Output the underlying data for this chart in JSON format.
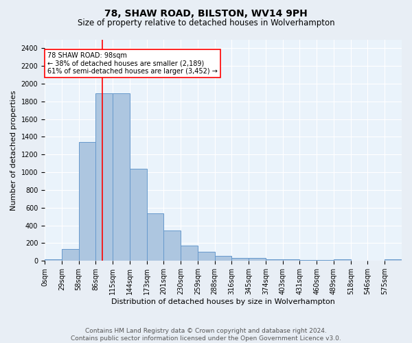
{
  "title1": "78, SHAW ROAD, BILSTON, WV14 9PH",
  "title2": "Size of property relative to detached houses in Wolverhampton",
  "xlabel": "Distribution of detached houses by size in Wolverhampton",
  "ylabel": "Number of detached properties",
  "footer": "Contains HM Land Registry data © Crown copyright and database right 2024.\nContains public sector information licensed under the Open Government Licence v3.0.",
  "bar_labels": [
    "0sqm",
    "29sqm",
    "58sqm",
    "86sqm",
    "115sqm",
    "144sqm",
    "173sqm",
    "201sqm",
    "230sqm",
    "259sqm",
    "288sqm",
    "316sqm",
    "345sqm",
    "374sqm",
    "403sqm",
    "431sqm",
    "460sqm",
    "489sqm",
    "518sqm",
    "546sqm",
    "575sqm"
  ],
  "bar_values": [
    15,
    130,
    1340,
    1890,
    1890,
    1040,
    540,
    340,
    170,
    105,
    55,
    35,
    30,
    20,
    15,
    10,
    8,
    15,
    5,
    5,
    15
  ],
  "bar_color": "#adc6e0",
  "bar_edge_color": "#6699cc",
  "property_line_x": 98,
  "property_line_color": "red",
  "annotation_text": "78 SHAW ROAD: 98sqm\n← 38% of detached houses are smaller (2,189)\n61% of semi-detached houses are larger (3,452) →",
  "annotation_box_color": "white",
  "annotation_box_edge": "red",
  "ylim": [
    0,
    2500
  ],
  "yticks": [
    0,
    200,
    400,
    600,
    800,
    1000,
    1200,
    1400,
    1600,
    1800,
    2000,
    2200,
    2400
  ],
  "bg_color": "#e8eef5",
  "plot_bg_color": "#eaf3fb",
  "grid_color": "white",
  "title1_fontsize": 10,
  "title2_fontsize": 8.5,
  "xlabel_fontsize": 8,
  "ylabel_fontsize": 8,
  "footer_fontsize": 6.5,
  "tick_fontsize": 7,
  "annot_fontsize": 7,
  "bin_width": 29
}
